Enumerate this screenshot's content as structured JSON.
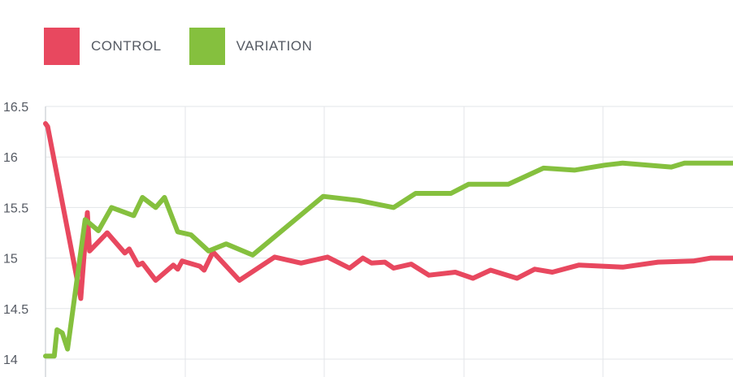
{
  "chart_data": {
    "type": "line",
    "title": "",
    "xlabel": "",
    "ylabel": "",
    "ylim": [
      14,
      16.5
    ],
    "yticks": [
      "14",
      "14.5",
      "15",
      "15.5",
      "16",
      "16.5"
    ],
    "grid": true,
    "legend_position": "top-left",
    "series": [
      {
        "name": "CONTROL",
        "color": "#e8485f",
        "points": [
          [
            0,
            16.33
          ],
          [
            0.5,
            16.3
          ],
          [
            8,
            14.6
          ],
          [
            9.5,
            15.45
          ],
          [
            10,
            15.07
          ],
          [
            14,
            15.25
          ],
          [
            18,
            15.05
          ],
          [
            19,
            15.09
          ],
          [
            21,
            14.93
          ],
          [
            22,
            14.95
          ],
          [
            25,
            14.78
          ],
          [
            29,
            14.93
          ],
          [
            30,
            14.89
          ],
          [
            31,
            14.97
          ],
          [
            35,
            14.92
          ],
          [
            36,
            14.88
          ],
          [
            38,
            15.06
          ],
          [
            44,
            14.78
          ],
          [
            52,
            15.01
          ],
          [
            58,
            14.95
          ],
          [
            64,
            15.01
          ],
          [
            69,
            14.9
          ],
          [
            72,
            15.0
          ],
          [
            74,
            14.95
          ],
          [
            77,
            14.96
          ],
          [
            79,
            14.9
          ],
          [
            83,
            14.94
          ],
          [
            87,
            14.83
          ],
          [
            93,
            14.86
          ],
          [
            97,
            14.8
          ],
          [
            101,
            14.88
          ],
          [
            107,
            14.8
          ],
          [
            111,
            14.89
          ],
          [
            115,
            14.86
          ],
          [
            121,
            14.93
          ],
          [
            131,
            14.91
          ],
          [
            139,
            14.96
          ],
          [
            147,
            14.97
          ],
          [
            151,
            15.0
          ],
          [
            156,
            15.0
          ]
        ]
      },
      {
        "name": "VARIATION",
        "color": "#85c03e",
        "points": [
          [
            0,
            14.03
          ],
          [
            2,
            14.03
          ],
          [
            2.6,
            14.29
          ],
          [
            3.8,
            14.26
          ],
          [
            5,
            14.1
          ],
          [
            9,
            15.38
          ],
          [
            12,
            15.27
          ],
          [
            15,
            15.5
          ],
          [
            20,
            15.42
          ],
          [
            22,
            15.6
          ],
          [
            25,
            15.5
          ],
          [
            27,
            15.6
          ],
          [
            30,
            15.26
          ],
          [
            33,
            15.23
          ],
          [
            37,
            15.07
          ],
          [
            41,
            15.14
          ],
          [
            47,
            15.03
          ],
          [
            63,
            15.61
          ],
          [
            71,
            15.57
          ],
          [
            79,
            15.5
          ],
          [
            84,
            15.64
          ],
          [
            92,
            15.64
          ],
          [
            96,
            15.73
          ],
          [
            105,
            15.73
          ],
          [
            113,
            15.89
          ],
          [
            120,
            15.87
          ],
          [
            127,
            15.92
          ],
          [
            131,
            15.94
          ],
          [
            142,
            15.9
          ],
          [
            145,
            15.94
          ],
          [
            156,
            15.94
          ]
        ]
      }
    ]
  }
}
